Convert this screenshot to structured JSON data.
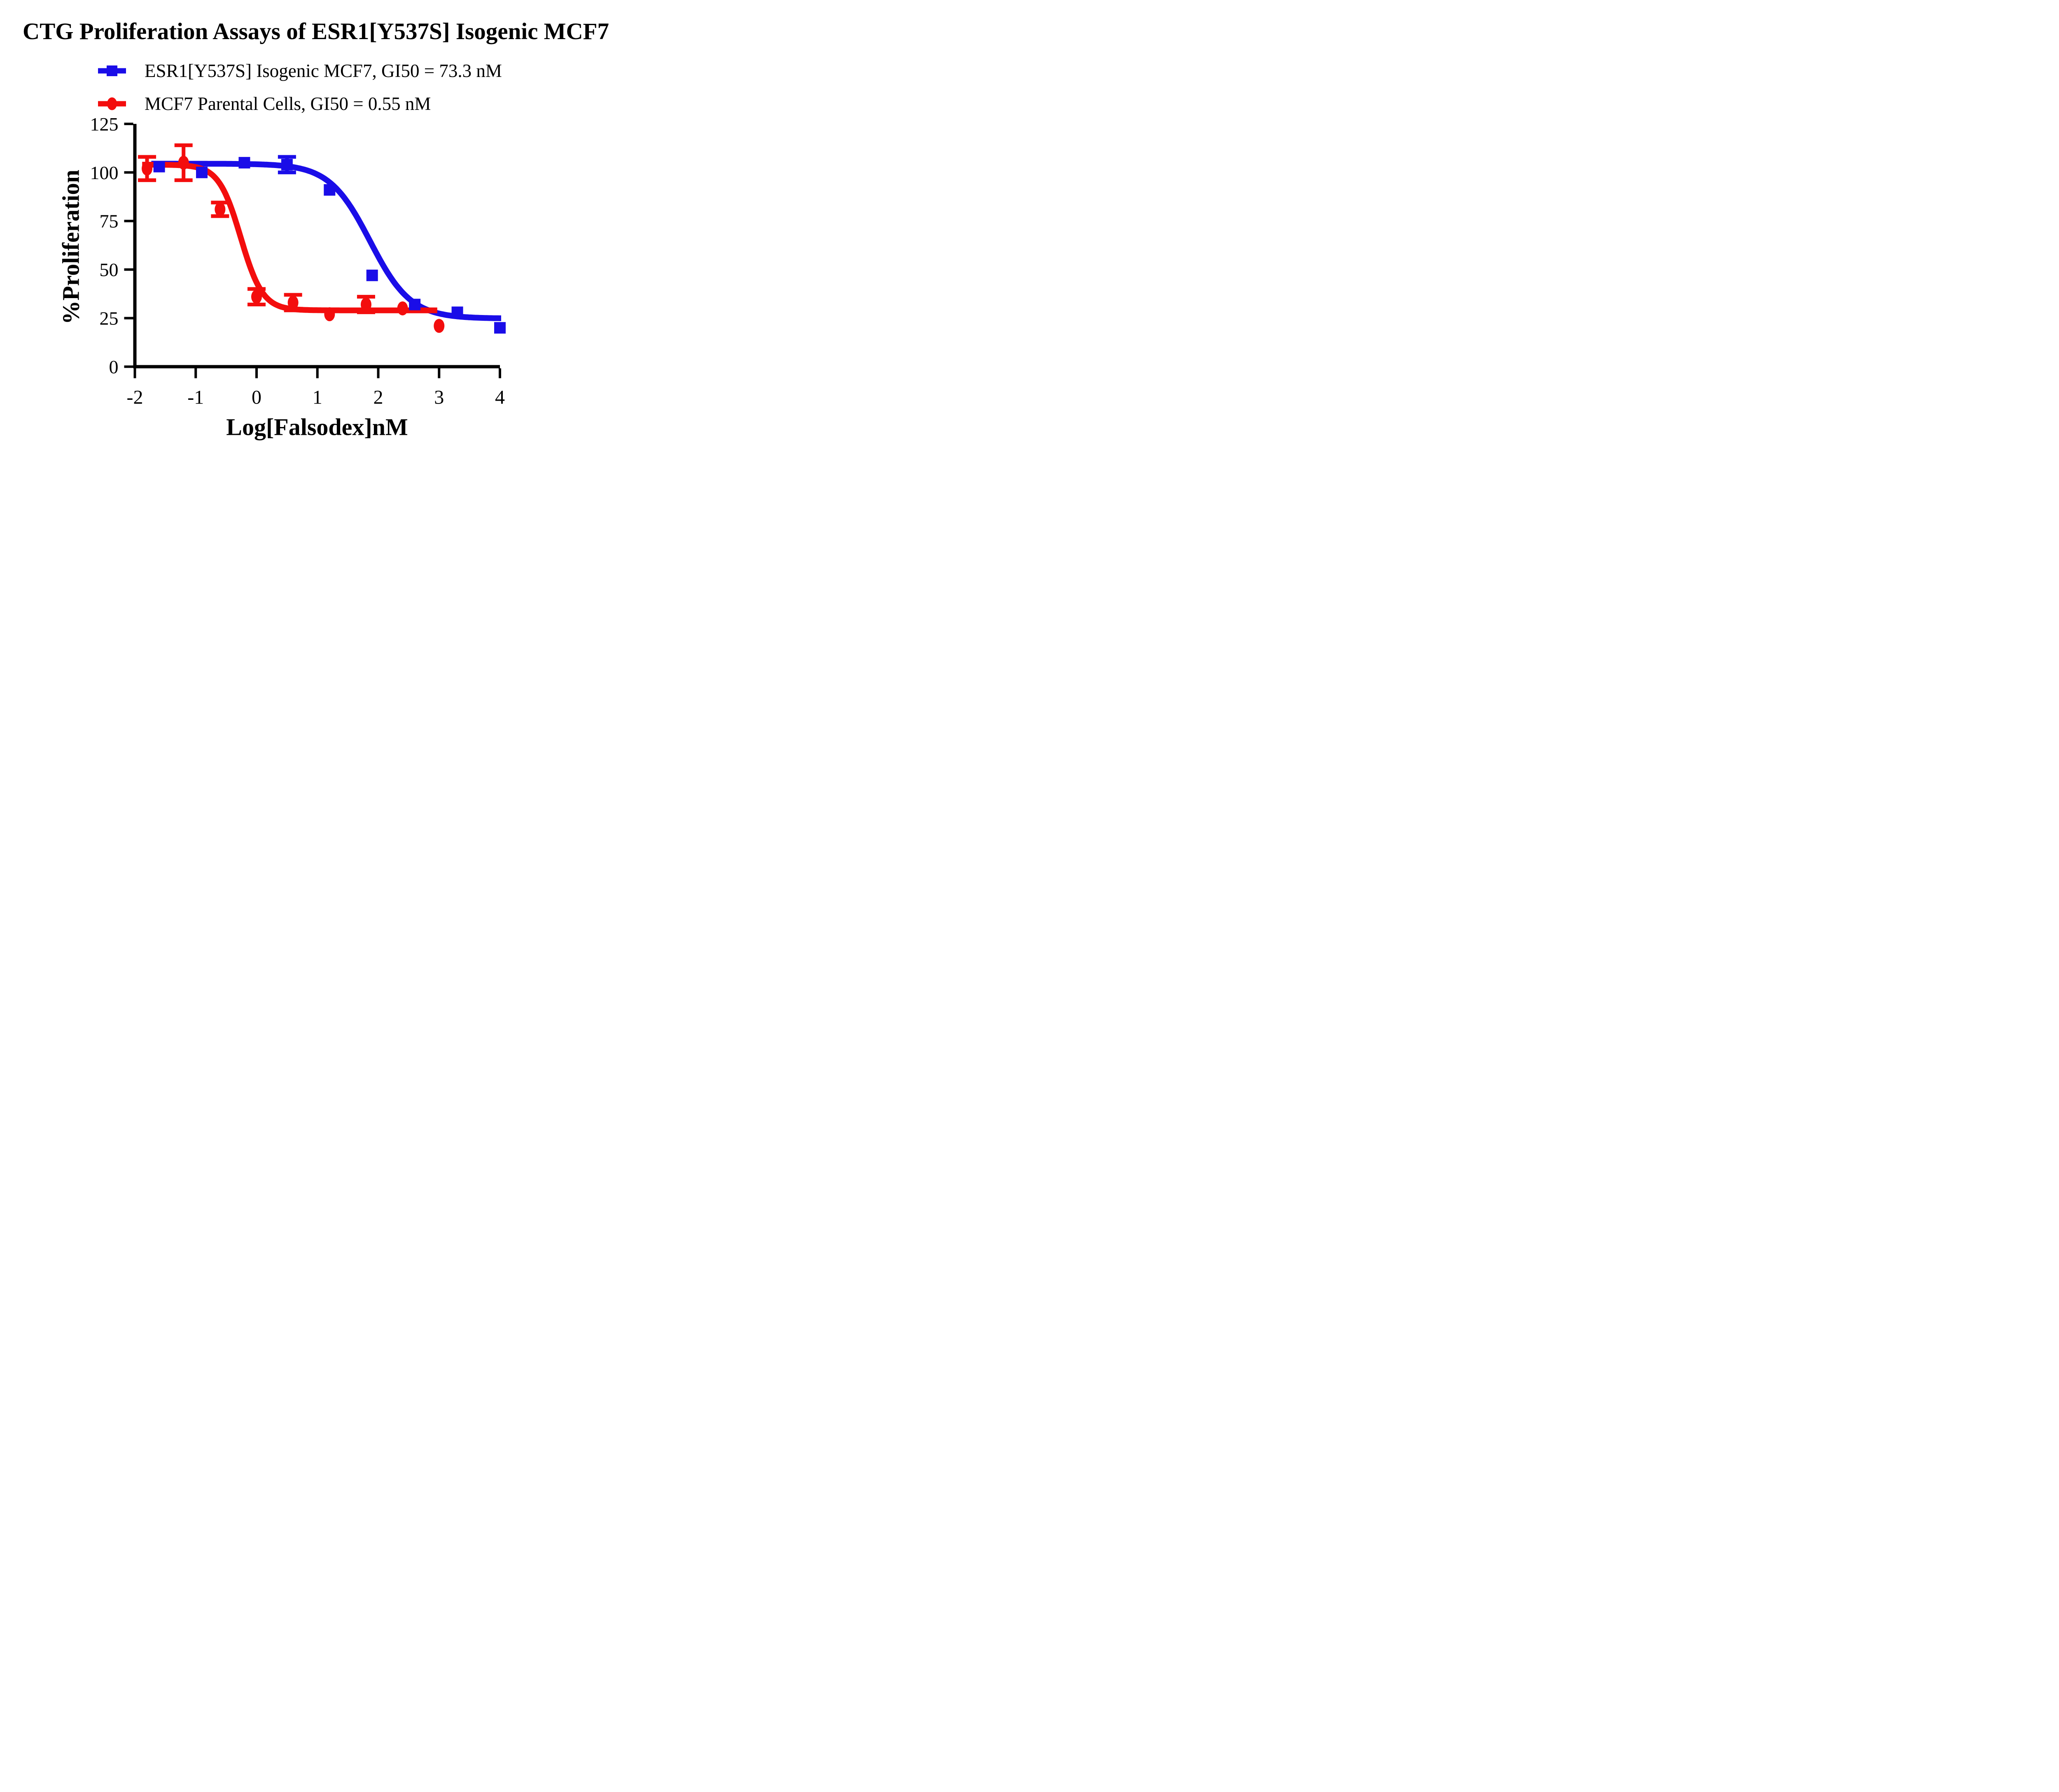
{
  "figure": {
    "title": "CTG Proliferation Assays of ESR1[Y537S] Isogenic MCF7"
  },
  "legend": [
    {
      "label": "ESR1[Y537S] Isogenic MCF7, GI50 = 73.3 nM",
      "marker": "square",
      "color": "#1A0DE8"
    },
    {
      "label": "MCF7 Parental Cells, GI50 = 0.55 nM",
      "marker": "circle",
      "color": "#F30D0D"
    }
  ],
  "chart_data": {
    "type": "scatter",
    "title": "CTG Proliferation Assays of ESR1[Y537S] Isogenic MCF7",
    "xlabel": "Log[Falsodex]nM",
    "ylabel": "%Proliferation",
    "xlim": [
      -2,
      4
    ],
    "ylim": [
      0,
      125
    ],
    "xticks": [
      -2,
      -1,
      0,
      1,
      2,
      3,
      4
    ],
    "yticks": [
      0,
      25,
      50,
      75,
      100,
      125
    ],
    "grid": false,
    "legend_position": "top-left",
    "axis_color": "#000000",
    "series": [
      {
        "name": "ESR1[Y537S] Isogenic MCF7",
        "gi50_nM": 73.3,
        "color": "#1A0DE8",
        "marker": "square",
        "x": [
          -1.6,
          -0.9,
          -0.2,
          0.5,
          1.2,
          1.9,
          2.6,
          3.3,
          4.0
        ],
        "y": [
          103,
          100,
          105,
          104,
          91,
          47,
          32,
          28,
          20
        ],
        "yerr": [
          0,
          0,
          0,
          4,
          0,
          0,
          0,
          0,
          0
        ],
        "fit": {
          "top": 104.5,
          "bottom": 24.8,
          "log_ic50": 1.865,
          "hill": 1.3,
          "x_start": -1.73,
          "x_end": 4.02
        }
      },
      {
        "name": "MCF7 Parental Cells",
        "gi50_nM": 0.55,
        "color": "#F30D0D",
        "marker": "circle",
        "x": [
          -1.8,
          -1.2,
          -0.6,
          0.0,
          0.6,
          1.2,
          1.8,
          2.4,
          3.0
        ],
        "y": [
          102,
          105,
          81,
          36,
          33,
          27,
          32,
          30,
          21
        ],
        "yerr": [
          6,
          9,
          3.5,
          4,
          4,
          0,
          4,
          0,
          0
        ],
        "fit": {
          "top": 104,
          "bottom": 29,
          "log_ic50": -0.26,
          "hill": 2.4,
          "x_start": -1.88,
          "x_end": 2.97
        }
      }
    ]
  }
}
